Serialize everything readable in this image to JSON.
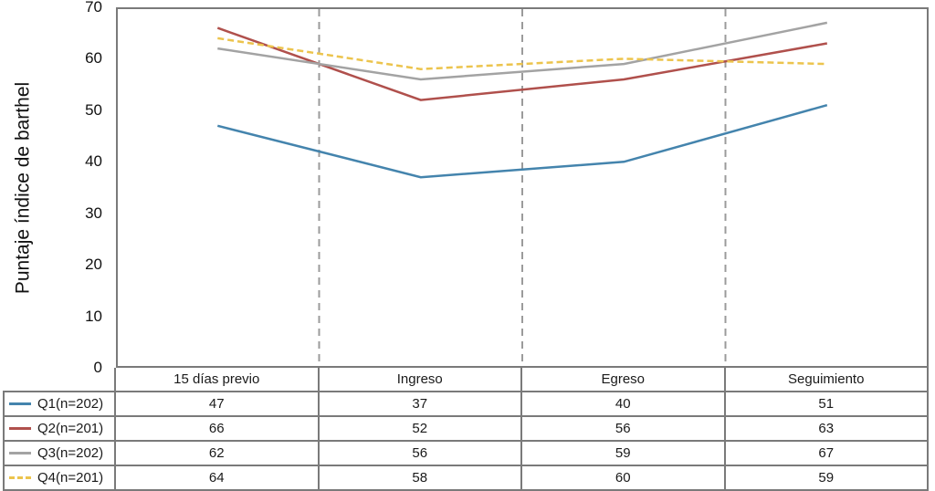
{
  "chart_data": {
    "type": "line",
    "title": "",
    "xlabel": "",
    "ylabel": "Puntaje índice de barthel",
    "ylim": [
      0,
      70
    ],
    "yticks": [
      0,
      10,
      20,
      30,
      40,
      50,
      60,
      70
    ],
    "categories": [
      "15 días previo",
      "Ingreso",
      "Egreso",
      "Seguimiento"
    ],
    "series": [
      {
        "name": "Q1(n=202)",
        "values": [
          47,
          37,
          40,
          51
        ],
        "color": "#4484ad",
        "style": "solid"
      },
      {
        "name": "Q2(n=201)",
        "values": [
          66,
          52,
          56,
          63
        ],
        "color": "#b0504c",
        "style": "solid"
      },
      {
        "name": "Q3(n=202)",
        "values": [
          62,
          56,
          59,
          67
        ],
        "color": "#a3a3a3",
        "style": "solid"
      },
      {
        "name": "Q4(n=201)",
        "values": [
          64,
          58,
          60,
          59
        ],
        "color": "#ecc44d",
        "style": "dashed"
      }
    ],
    "grid": "vertical dashed lines at category boundaries",
    "legend_position": "left column of data table below chart",
    "colors": {
      "plot_border": "#7a7a7a",
      "gridline": "#9b9b9b",
      "text": "#1a1a1a"
    }
  }
}
